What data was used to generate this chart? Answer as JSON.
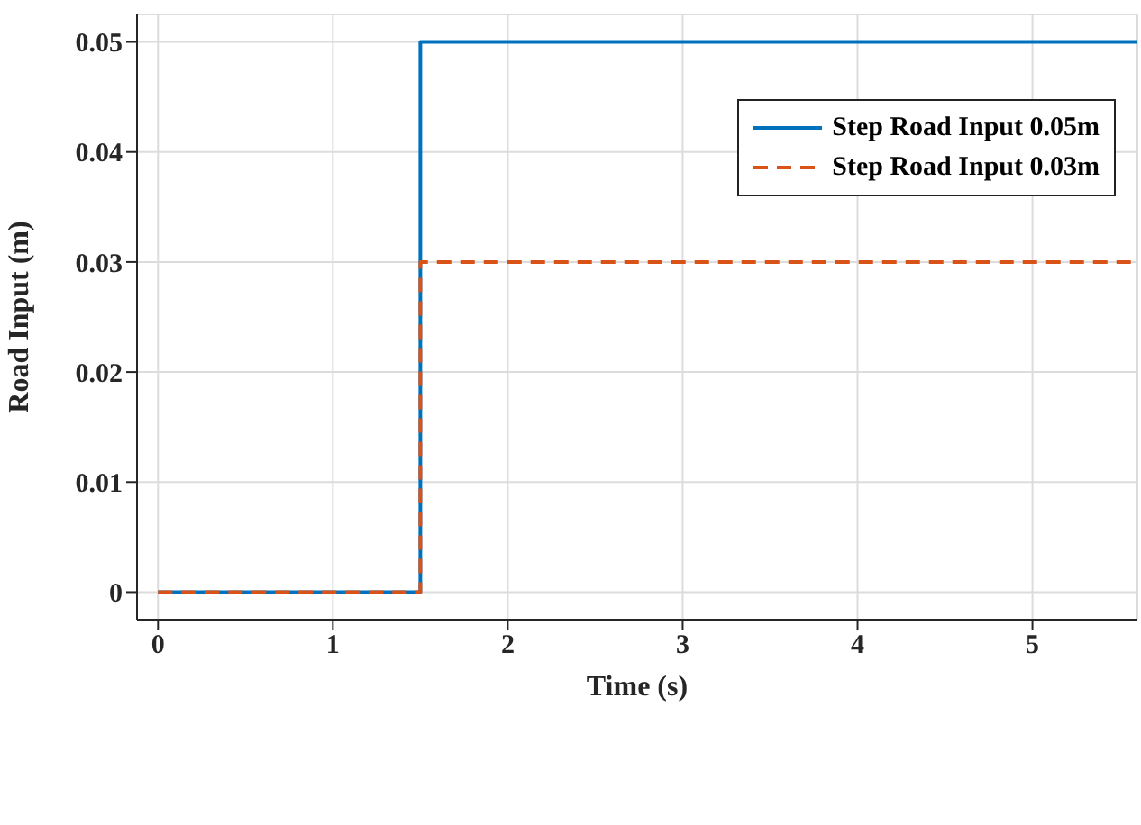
{
  "chart_data": {
    "type": "step",
    "xlabel": "Time (s)",
    "ylabel": "Road Input (m)",
    "x": [
      0,
      1.5,
      5.6
    ],
    "series": [
      {
        "name": "Step Road Input 0.05m",
        "color": "#0072bd",
        "values": [
          0,
          0.05,
          0.05
        ],
        "line_style": "solid"
      },
      {
        "name": "Step Road Input 0.03m",
        "color": "#d95319",
        "values": [
          0,
          0.03,
          0.03
        ],
        "line_style": "dashed"
      }
    ],
    "xlim": [
      -0.12,
      5.6
    ],
    "xticks": [
      0,
      1,
      2,
      3,
      4,
      5
    ],
    "ylim": [
      -0.0025,
      0.0525
    ],
    "yticks": [
      0,
      0.01,
      0.02,
      0.03,
      0.04,
      0.05
    ],
    "grid": true,
    "legend": "top right"
  }
}
